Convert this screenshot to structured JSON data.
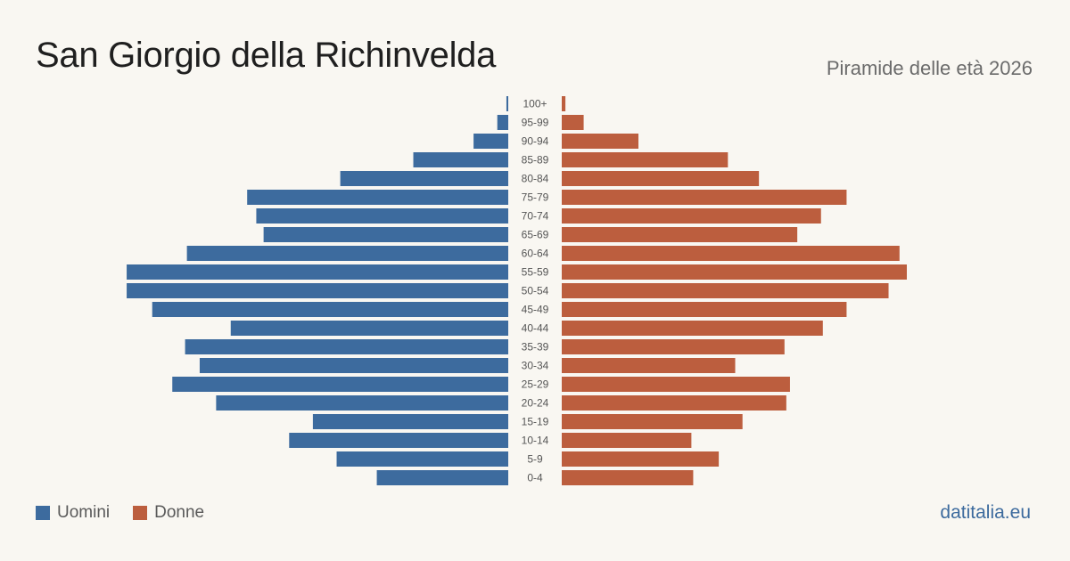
{
  "header": {
    "title": "San Giorgio della Richinvelda",
    "subtitle": "Piramide delle età 2026"
  },
  "legend": {
    "men_label": "Uomini",
    "women_label": "Donne"
  },
  "footer": {
    "source": "datitalia.eu"
  },
  "colors": {
    "men": "#3d6b9e",
    "women": "#bc5e3e",
    "background": "#f9f7f2"
  },
  "chart_data": {
    "type": "bar",
    "orientation": "horizontal-pyramid",
    "categories": [
      "100+",
      "95-99",
      "90-94",
      "85-89",
      "80-84",
      "75-79",
      "70-74",
      "65-69",
      "60-64",
      "55-59",
      "50-54",
      "45-49",
      "40-44",
      "35-39",
      "30-34",
      "25-29",
      "20-24",
      "15-19",
      "10-14",
      "5-9",
      "0-4"
    ],
    "series": [
      {
        "name": "Uomini",
        "values": [
          1,
          6,
          19,
          52,
          92,
          143,
          138,
          134,
          176,
          209,
          209,
          195,
          152,
          177,
          169,
          184,
          160,
          107,
          120,
          94,
          72
        ]
      },
      {
        "name": "Donne",
        "values": [
          2,
          12,
          42,
          91,
          108,
          156,
          142,
          129,
          185,
          189,
          179,
          156,
          143,
          122,
          95,
          125,
          123,
          99,
          71,
          86,
          72
        ]
      }
    ],
    "xlim": [
      0,
      210
    ]
  }
}
